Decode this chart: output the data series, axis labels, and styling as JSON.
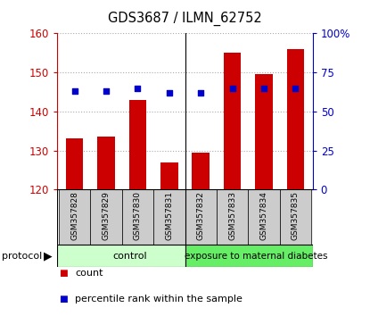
{
  "title": "GDS3687 / ILMN_62752",
  "categories": [
    "GSM357828",
    "GSM357829",
    "GSM357830",
    "GSM357831",
    "GSM357832",
    "GSM357833",
    "GSM357834",
    "GSM357835"
  ],
  "bar_values": [
    133,
    133.5,
    143,
    127,
    129.5,
    155,
    149.5,
    156
  ],
  "dot_values": [
    63,
    63,
    65,
    62,
    62,
    65,
    65,
    65
  ],
  "bar_color": "#cc0000",
  "dot_color": "#0000cc",
  "ylim_left": [
    120,
    160
  ],
  "ylim_right": [
    0,
    100
  ],
  "yticks_left": [
    120,
    130,
    140,
    150,
    160
  ],
  "yticks_right": [
    0,
    25,
    50,
    75,
    100
  ],
  "yticklabels_right": [
    "0",
    "25",
    "50",
    "75",
    "100%"
  ],
  "grid_color": "#aaaaaa",
  "background_color": "#ffffff",
  "control_label": "control",
  "diabetes_label": "exposure to maternal diabetes",
  "control_color": "#ccffcc",
  "diabetes_color": "#66ee66",
  "group_label": "protocol",
  "legend_bar_label": "count",
  "legend_dot_label": "percentile rank within the sample",
  "tick_gray_bg": "#cccccc",
  "bar_bottom": 120,
  "n_control": 4,
  "n_total": 8
}
